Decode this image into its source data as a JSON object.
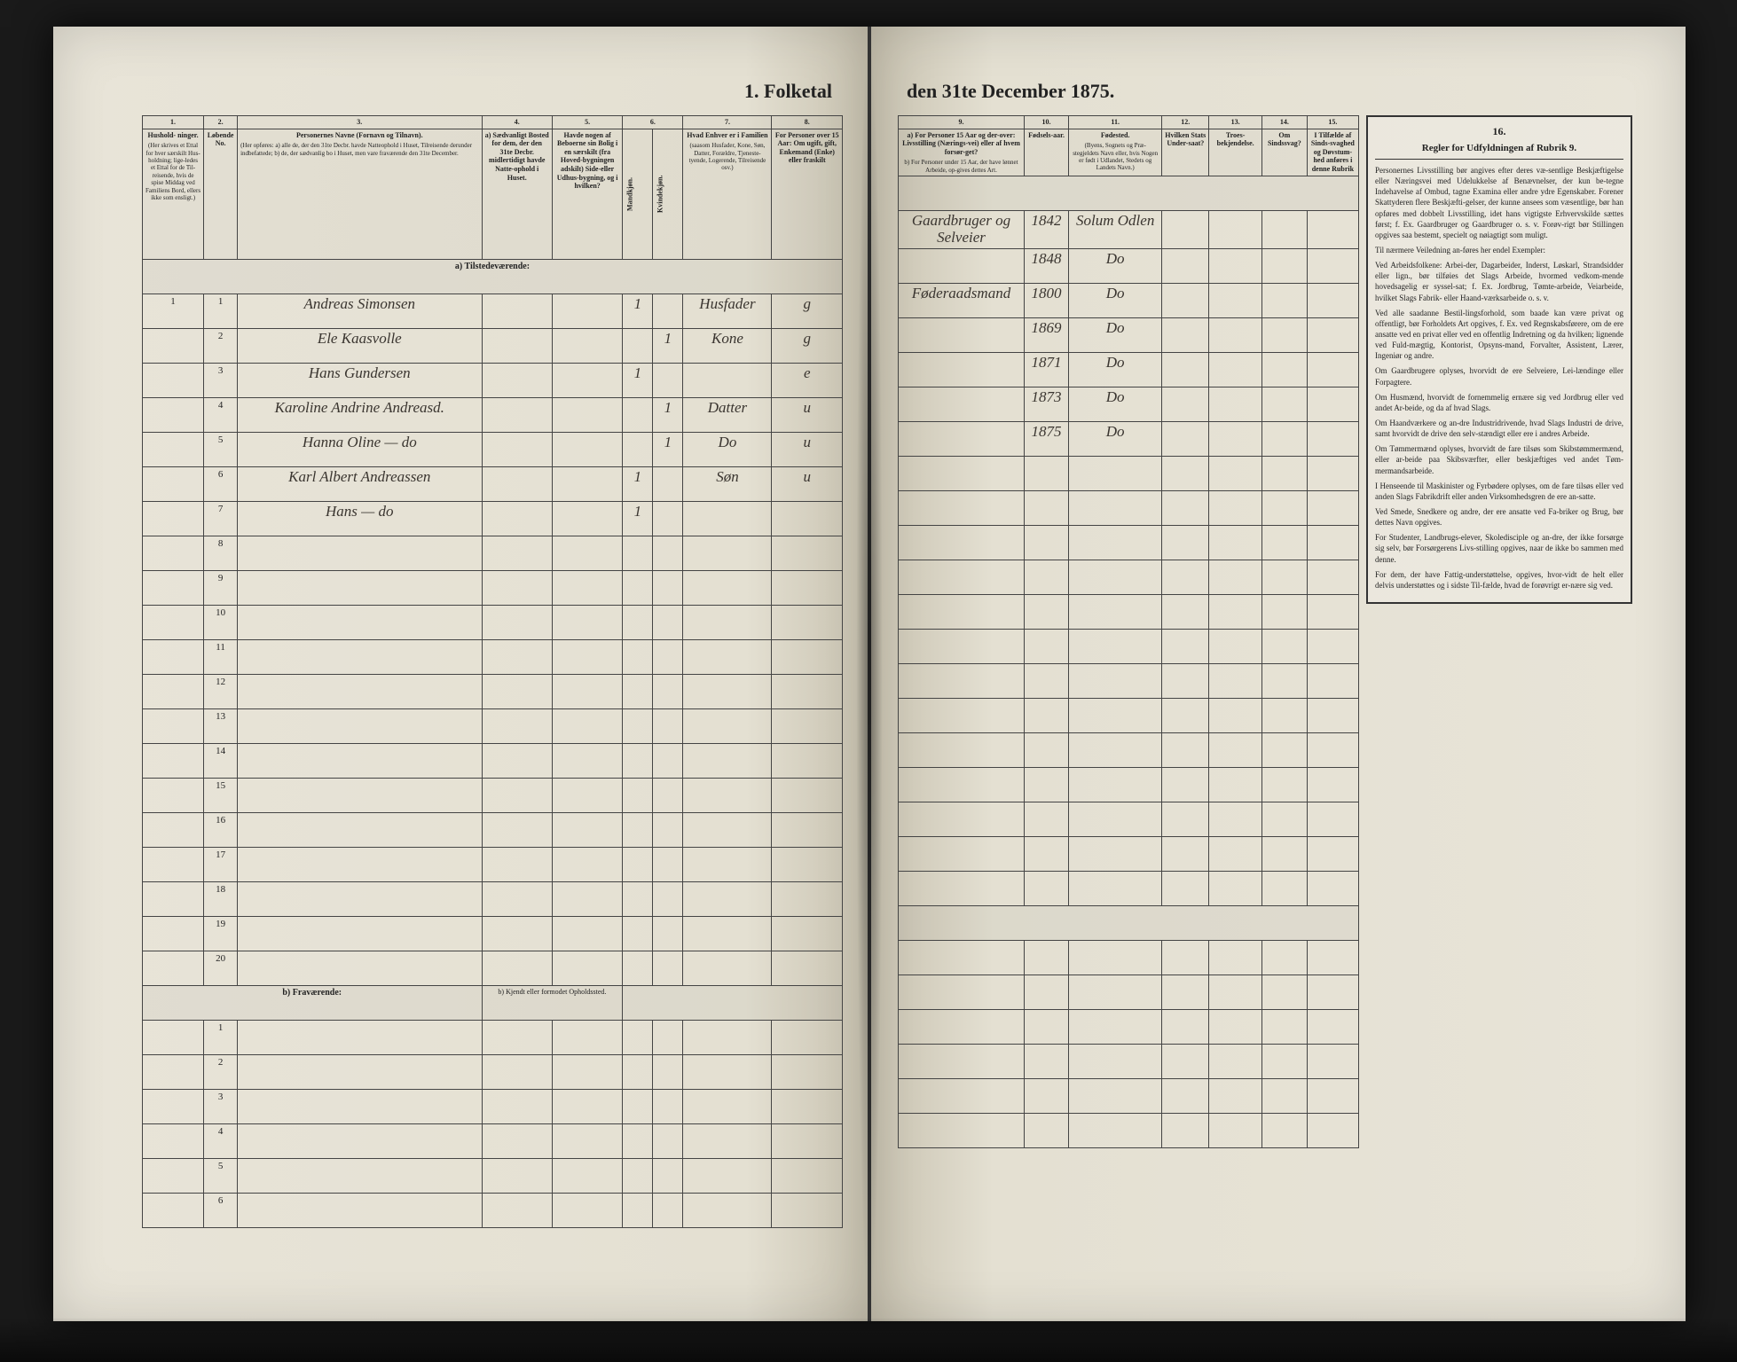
{
  "title_left": "1. Folketal",
  "title_right": "den 31te December 1875.",
  "column_numbers": [
    "1.",
    "2.",
    "3.",
    "4.",
    "5.",
    "6.",
    "7.",
    "8.",
    "9.",
    "10.",
    "11.",
    "12.",
    "13.",
    "14.",
    "15.",
    "16."
  ],
  "headers_left": {
    "c1": "Hushold-\nninger.",
    "c1_sub": "(Her skrives et Ettal for hver særskilt Hus-holdning; lige-ledes et Ettal for de Til-reisende, hvis de spise Middag ved Familiens Bord, ellers ikke som ensligt.)",
    "c2": "Løbende No.",
    "c3": "Personernes Navne (Fornavn og Tilnavn).",
    "c3_sub": "(Her opføres:\na) alle de, der den 31te Decbr. havde Natteophold i Huset, Tilreisende derunder indbefattede;\nb) de, der sædvanlig bo i Huset, men vare fraværende den 31te December.",
    "c4": "a) Sædvanligt Bosted for dem, der den 31te Decbr. midlertidigt havde Natte-ophold i Huset.",
    "c5": "Havde nogen af Beboerne sin Bolig i en særskilt (fra Hoved-bygningen adskilt) Side-eller Udhus-bygning, og i hvilken?",
    "c6": "Kjøn. (Her sæt-tes et Ettal i ved-kommende Rubrik.)",
    "c6_m": "Mandkjøn.",
    "c6_k": "Kvindekjøn.",
    "c7": "Hvad Enhver er i Familien",
    "c7_sub": "(saasom Husfader, Kone, Søn, Datter, Forældre, Tjeneste-tyende, Logerende, Tilreisende osv.)",
    "c8": "For Personer over 15 Aar: Om ugift, gift, Enkemand (Enke) eller fraskilt"
  },
  "headers_right": {
    "c9": "a) For Personer 15 Aar og der-over: Livsstilling (Nærings-vei) eller af hvem forsør-get?",
    "c9_sub": "b) For Personer under 15 Aar, der have lønnet Arbeide, op-gives dettes Art.",
    "c10": "Fødsels-aar.",
    "c11": "Fødested.",
    "c11_sub": "(Byens, Sognets og Præ-stegjeldets Navn eller, hvis Nogen er født i Udlandet, Stedets og Landets Navn.)",
    "c12": "Hvilken Stats Under-saat?",
    "c13": "Troes-bekjendelse.",
    "c14": "Om Sindssvag?",
    "c15": "I Tilfælde af Sinds-svaghed og Døvstum-hed anføres i denne Rubrik"
  },
  "section_a": "a) Tilstedeværende:",
  "section_b": "b) Fraværende:",
  "section_b_note": "b) Kjendt eller formodet Opholdssted.",
  "entries": [
    {
      "no": "1",
      "hh": "1",
      "name": "Andreas Simonsen",
      "m": "1",
      "fam": "Husfader",
      "stat": "g",
      "occ": "Gaardbruger og Selveier",
      "yr": "1842",
      "place": "Solum Odlen"
    },
    {
      "no": "2",
      "hh": "",
      "name": "Ele Kaasvolle",
      "k": "1",
      "fam": "Kone",
      "stat": "g",
      "occ": "",
      "yr": "1848",
      "place": "Do"
    },
    {
      "no": "3",
      "hh": "",
      "name": "Hans Gundersen",
      "m": "1",
      "fam": "",
      "stat": "e",
      "occ": "Føderaadsmand",
      "yr": "1800",
      "place": "Do"
    },
    {
      "no": "4",
      "hh": "",
      "name": "Karoline Andrine Andreasd.",
      "k": "1",
      "fam": "Datter",
      "stat": "u",
      "occ": "",
      "yr": "1869",
      "place": "Do"
    },
    {
      "no": "5",
      "hh": "",
      "name": "Hanna Oline  —  do",
      "k": "1",
      "fam": "Do",
      "stat": "u",
      "occ": "",
      "yr": "1871",
      "place": "Do"
    },
    {
      "no": "6",
      "hh": "",
      "name": "Karl Albert Andreassen",
      "m": "1",
      "fam": "Søn",
      "stat": "u",
      "occ": "",
      "yr": "1873",
      "place": "Do"
    },
    {
      "no": "7",
      "hh": "",
      "name": "Hans  —  do",
      "m": "1",
      "fam": "",
      "stat": "",
      "occ": "",
      "yr": "1875",
      "place": "Do"
    }
  ],
  "blank_rows_a": [
    "8",
    "9",
    "10",
    "11",
    "12",
    "13",
    "14",
    "15",
    "16",
    "17",
    "18",
    "19",
    "20"
  ],
  "blank_rows_b": [
    "1",
    "2",
    "3",
    "4",
    "5",
    "6"
  ],
  "rules": {
    "heading": "Regler for Udfyldningen\naf\nRubrik 9.",
    "p1": "Personernes Livsstilling bør angives efter deres væ-sentlige Beskjæftigelse eller Næringsvei med Udelukkelse af Benævnelser, der kun be-tegne Indehavelse af Ombud, tagne Examina eller andre ydre Egenskaber. Forener Skattyderen flere Beskjæfti-gelser, der kunne ansees som væsentlige, bør han opføres med dobbelt Livsstilling, idet hans vigtigste Erhvervskilde sættes først; f. Ex. Gaardbruger og Gaardbruger o. s. v. Forøv-rigt bør Stillingen opgives saa bestemt, specielt og nøiagtigt som muligt.",
    "p2": "Til nærmere Veiledning an-føres her endel Exempler:",
    "p3": "Ved Arbeidsfolkene: Arbei-der, Dagarbeider, Inderst, Løskarl, Strandsidder eller lign., bør tilføies det Slags Arbeide, hvormed vedkom-mende hovedsagelig er syssel-sat; f. Ex. Jordbrug, Tømte-arbeide, Veiarbeide, hvilket Slags Fabrik- eller Haand-værksarbeide o. s. v.",
    "p4": "Ved alle saadanne Bestil-lingsforhold, som baade kan være privat og offentligt, bør Forholdets Art opgives, f. Ex. ved Regnskabsførere, om de ere ansatte ved en privat eller ved en offentlig Indretning og da hvilken; lignende ved Fuld-mægtig, Kontorist, Opsyns-mand, Forvalter, Assistent, Lærer, Ingeniør og andre.",
    "p5": "Om Gaardbrugere oplyses, hvorvidt de ere Selveiere, Lei-lændinge eller Forpagtere.",
    "p6": "Om Husmænd, hvorvidt de fornemmelig ernære sig ved Jordbrug eller ved andet Ar-beide, og da af hvad Slags.",
    "p7": "Om Haandværkere og an-dre Industridrivende, hvad Slags Industri de drive, samt hvorvidt de drive den selv-stændigt eller ere i andres Arbeide.",
    "p8": "Om Tømmermænd oplyses, hvorvidt de fare tilsøs som Skibstømmermænd, eller ar-beide paa Skibsværfter, eller beskjæftiges ved andet Tøm-mermandsarbeide.",
    "p9": "I Henseende til Maskinister og Fyrbødere oplyses, om de fare tilsøs eller ved anden Slags Fabrikdrift eller anden Virksomhedsgren de ere an-satte.",
    "p10": "Ved Smede, Snedkere og andre, der ere ansatte ved Fa-briker og Brug, bør dettes Navn opgives.",
    "p11": "For Studenter, Landbrugs-elever, Skoledisciple og an-dre, der ikke forsørge sig selv, bør Forsørgerens Livs-stilling opgives, naar de ikke bo sammen med denne.",
    "p12": "For dem, der have Fattig-understøttelse, opgives, hvor-vidt de helt eller delvis understøttes og i sidste Til-fælde, hvad de forøvrigt er-nære sig ved."
  }
}
